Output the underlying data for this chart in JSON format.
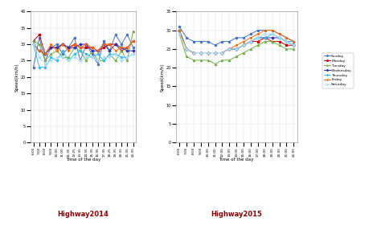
{
  "time_labels_2014": [
    "6:00",
    "7:00",
    "8:00",
    "9:00",
    "10:00",
    "11:00",
    "11:35",
    "12:25",
    "13:35",
    "14:35",
    "15:35",
    "16:35",
    "17:35",
    "18:25",
    "19:35",
    "20:35",
    "21:35",
    "22:35"
  ],
  "time_labels_2015": [
    "6:00",
    "7:00",
    "8:00",
    "9:00",
    "10:00",
    "11:00",
    "12:00",
    "13:00",
    "14:00",
    "15:00",
    "16:00",
    "17:00",
    "18:00",
    "19:00",
    "20:00",
    "21:00",
    "22:00"
  ],
  "days": [
    "Sunday",
    "Monday",
    "Tuesday",
    "Wednesday",
    "Thursday",
    "Friday",
    "Saturday"
  ],
  "colors": [
    "#4472C4",
    "#CC0000",
    "#70AD47",
    "#3333AA",
    "#33BBEE",
    "#FF6600",
    "#AADDEE"
  ],
  "markers": [
    "o",
    "s",
    "^",
    "D",
    "o",
    "*",
    "o"
  ],
  "highway2014": {
    "Sunday": [
      23,
      32,
      25,
      29,
      30,
      27,
      29,
      32,
      25,
      30,
      27,
      24,
      31,
      28,
      33,
      30,
      33,
      29
    ],
    "Monday": [
      31,
      33,
      27,
      29,
      29,
      30,
      29,
      30,
      29,
      29,
      29,
      28,
      29,
      30,
      30,
      28,
      29,
      31
    ],
    "Tuesday": [
      31,
      30,
      25,
      27,
      28,
      26,
      26,
      29,
      28,
      25,
      28,
      25,
      25,
      27,
      25,
      28,
      25,
      34
    ],
    "Wednesday": [
      30,
      28,
      27,
      29,
      29,
      30,
      29,
      29,
      30,
      30,
      28,
      28,
      30,
      28,
      30,
      29,
      28,
      28
    ],
    "Thursday": [
      30,
      23,
      23,
      26,
      25,
      28,
      25,
      27,
      28,
      27,
      26,
      27,
      25,
      27,
      27,
      26,
      26,
      27
    ],
    "Friday": [
      30,
      28,
      27,
      30,
      28,
      30,
      28,
      30,
      29,
      30,
      29,
      28,
      30,
      30,
      28,
      29,
      29,
      31
    ],
    "Saturday": [
      30,
      26,
      24,
      25,
      26,
      26,
      25,
      26,
      25,
      26,
      26,
      25,
      26,
      26,
      27,
      25,
      26,
      27
    ]
  },
  "highway2015": {
    "Sunday": [
      31,
      28,
      27,
      27,
      27,
      26,
      27,
      27,
      28,
      28,
      29,
      30,
      30,
      30,
      29,
      28,
      27
    ],
    "Monday": [
      30,
      25,
      24,
      24,
      24,
      24,
      24,
      25,
      25,
      26,
      27,
      27,
      28,
      27,
      27,
      26,
      26
    ],
    "Tuesday": [
      29,
      23,
      22,
      22,
      22,
      21,
      22,
      22,
      23,
      24,
      25,
      26,
      27,
      27,
      26,
      25,
      25
    ],
    "Wednesday": [
      30,
      25,
      24,
      24,
      24,
      24,
      24,
      25,
      25,
      26,
      27,
      28,
      28,
      28,
      28,
      27,
      26
    ],
    "Thursday": [
      30,
      25,
      24,
      24,
      24,
      24,
      24,
      25,
      25,
      26,
      27,
      28,
      28,
      29,
      28,
      27,
      27
    ],
    "Friday": [
      30,
      25,
      24,
      24,
      24,
      24,
      24,
      25,
      26,
      27,
      28,
      29,
      30,
      30,
      29,
      28,
      27
    ],
    "Saturday": [
      29,
      25,
      24,
      24,
      24,
      24,
      24,
      25,
      25,
      26,
      27,
      28,
      29,
      29,
      28,
      27,
      26
    ]
  },
  "ylabel": "Speed(km/h)",
  "xlabel": "Time of the day",
  "title1": "Highway2014",
  "title2": "Highway2015",
  "ylim1": [
    0,
    40
  ],
  "ylim2": [
    0,
    35
  ],
  "yticks1": [
    0,
    5,
    10,
    15,
    20,
    25,
    30,
    35,
    40
  ],
  "yticks2": [
    0,
    5,
    10,
    15,
    20,
    25,
    30,
    35
  ]
}
